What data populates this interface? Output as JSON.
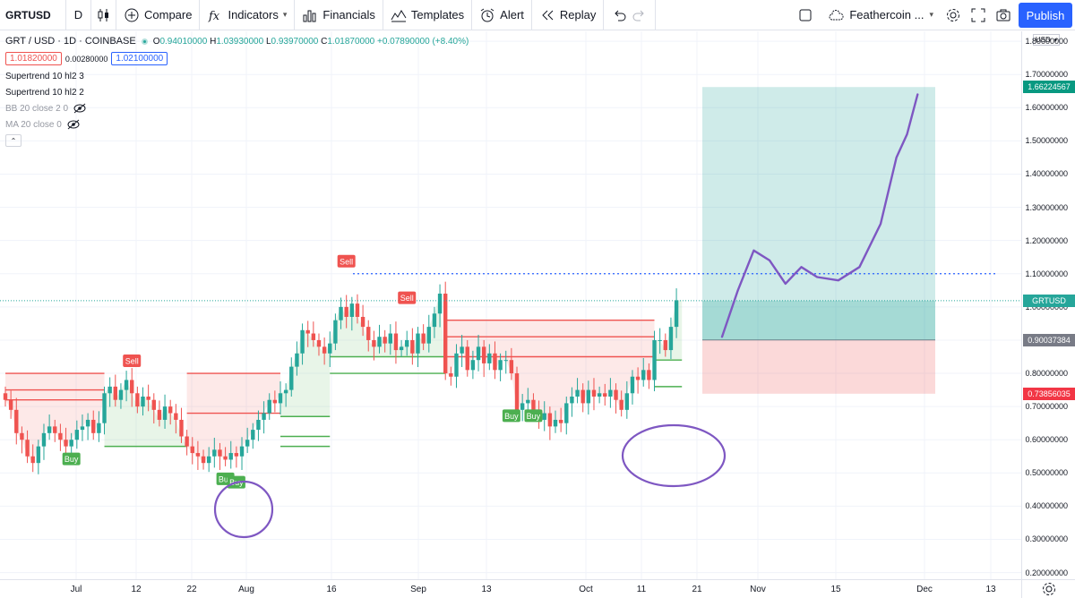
{
  "toolbar": {
    "symbol": "GRTUSD",
    "interval": "D",
    "compare_label": "Compare",
    "indicators_label": "Indicators",
    "financials_label": "Financials",
    "templates_label": "Templates",
    "alert_label": "Alert",
    "replay_label": "Replay",
    "layout_name": "Feathercoin ...",
    "publish_label": "Publish"
  },
  "legend": {
    "title": "GRT / USD · 1D · COINBASE",
    "open_key": "O",
    "open": "0.94010000",
    "high_key": "H",
    "high": "1.03930000",
    "low_key": "L",
    "low": "0.93970000",
    "close_key": "C",
    "close": "1.01870000",
    "change": "+0.07890000 (+8.40%)",
    "bid": "1.01820000",
    "spread": "0.00280000",
    "ask": "1.02100000",
    "indicators": [
      {
        "label": "Supertrend 10 hl2 3",
        "hidden": false
      },
      {
        "label": "Supertrend 10 hl2 2",
        "hidden": false
      },
      {
        "label": "BB 20 close 2 0",
        "hidden": true
      },
      {
        "label": "MA 20 close 0",
        "hidden": true
      }
    ]
  },
  "price_axis": {
    "currency": "USD",
    "ticks": [
      "1.80000000",
      "1.70000000",
      "1.60000000",
      "1.50000000",
      "1.40000000",
      "1.30000000",
      "1.20000000",
      "1.10000000",
      "1.00000000",
      "0.90000000",
      "0.80000000",
      "0.70000000",
      "0.60000000",
      "0.50000000",
      "0.40000000",
      "0.30000000",
      "0.20000000"
    ],
    "tags": [
      {
        "label": "1.66224567",
        "value": 1.66224567,
        "color": "#089981"
      },
      {
        "label": "GRTUSD",
        "value": 1.0187,
        "color": "#26a69a"
      },
      {
        "label": "0.90037384",
        "value": 0.90037384,
        "color": "#787b86"
      },
      {
        "label": "0.73856035",
        "value": 0.73856035,
        "color": "#f23645"
      }
    ]
  },
  "time_axis": {
    "labels": [
      "Jul",
      "12",
      "22",
      "Aug",
      "16",
      "Sep",
      "13",
      "Oct",
      "11",
      "21",
      "Nov",
      "15",
      "Dec",
      "13"
    ]
  },
  "chart_data": {
    "type": "candlestick",
    "symbol": "GRTUSD",
    "exchange": "COINBASE",
    "timeframe": "1D",
    "ylim": [
      0.18,
      1.83
    ],
    "colors": {
      "up": "#26a69a",
      "down": "#ef5350",
      "trend_up": "#4caf50",
      "trend_down": "#ef5350",
      "annotation": "#7e57c2",
      "level_line": "#2962ff"
    },
    "close": [
      0.72,
      0.69,
      0.62,
      0.6,
      0.55,
      0.53,
      0.58,
      0.62,
      0.64,
      0.62,
      0.6,
      0.58,
      0.6,
      0.63,
      0.64,
      0.66,
      0.62,
      0.65,
      0.74,
      0.76,
      0.72,
      0.75,
      0.78,
      0.74,
      0.7,
      0.73,
      0.72,
      0.69,
      0.66,
      0.7,
      0.68,
      0.66,
      0.61,
      0.58,
      0.56,
      0.55,
      0.53,
      0.55,
      0.57,
      0.55,
      0.54,
      0.56,
      0.55,
      0.58,
      0.6,
      0.63,
      0.66,
      0.68,
      0.72,
      0.71,
      0.74,
      0.75,
      0.82,
      0.86,
      0.93,
      0.92,
      0.9,
      0.88,
      0.86,
      0.89,
      0.96,
      1.0,
      0.97,
      1.01,
      0.97,
      0.94,
      0.9,
      0.88,
      0.91,
      0.89,
      0.92,
      0.87,
      0.88,
      0.9,
      0.86,
      0.92,
      0.89,
      0.94,
      0.98,
      1.04,
      0.8,
      0.79,
      0.86,
      0.88,
      0.81,
      0.84,
      0.88,
      0.83,
      0.86,
      0.81,
      0.84,
      0.84,
      0.8,
      0.69,
      0.71,
      0.72,
      0.69,
      0.66,
      0.68,
      0.64,
      0.66,
      0.65,
      0.71,
      0.73,
      0.75,
      0.71,
      0.75,
      0.73,
      0.74,
      0.73,
      0.75,
      0.72,
      0.69,
      0.74,
      0.79,
      0.78,
      0.81,
      0.78,
      0.9,
      0.9,
      0.87,
      0.94,
      1.02
    ],
    "supertrend": [
      {
        "side": "sell",
        "from": 0,
        "to": 18,
        "levels": [
          0.8,
          0.75,
          0.72
        ]
      },
      {
        "side": "buy",
        "from": 18,
        "to": 33,
        "levels": [
          0.58
        ]
      },
      {
        "side": "sell",
        "from": 33,
        "to": 50,
        "levels": [
          0.8,
          0.68
        ]
      },
      {
        "side": "buy",
        "from": 50,
        "to": 59,
        "levels": [
          0.67,
          0.61,
          0.58
        ]
      },
      {
        "side": "buy",
        "from": 59,
        "to": 80,
        "levels": [
          0.85,
          0.8
        ]
      },
      {
        "side": "sell",
        "from": 80,
        "to": 118,
        "levels": [
          0.96,
          0.91,
          0.85
        ]
      },
      {
        "side": "buy",
        "from": 118,
        "to": 123,
        "levels": [
          0.84,
          0.76
        ]
      }
    ],
    "signals": [
      {
        "label": "Buy",
        "index": 12,
        "price": 0.58
      },
      {
        "label": "Sell",
        "index": 23,
        "price": 0.8
      },
      {
        "label": "Buy",
        "index": 40,
        "price": 0.52
      },
      {
        "label": "Buy",
        "index": 42,
        "price": 0.51
      },
      {
        "label": "Sell",
        "index": 62,
        "price": 1.1
      },
      {
        "label": "Sell",
        "index": 73,
        "price": 0.99
      },
      {
        "label": "Buy",
        "index": 92,
        "price": 0.71
      },
      {
        "label": "Buy",
        "index": 96,
        "price": 0.71
      }
    ],
    "horizontal_level": 1.1,
    "position_tool": {
      "from_index": 97,
      "to_index": 131,
      "entry": 0.90037384,
      "target": 1.66224567,
      "stop": 0.73856035
    },
    "projection": [
      [
        101,
        0.91
      ],
      [
        104,
        1.05
      ],
      [
        107,
        1.17
      ],
      [
        110,
        1.14
      ],
      [
        113,
        1.07
      ],
      [
        116,
        1.12
      ],
      [
        119,
        1.09
      ],
      [
        123,
        1.08
      ],
      [
        127,
        1.12
      ],
      [
        131,
        1.25
      ],
      [
        134,
        1.45
      ],
      [
        136,
        1.52
      ],
      [
        138,
        1.64
      ]
    ]
  }
}
